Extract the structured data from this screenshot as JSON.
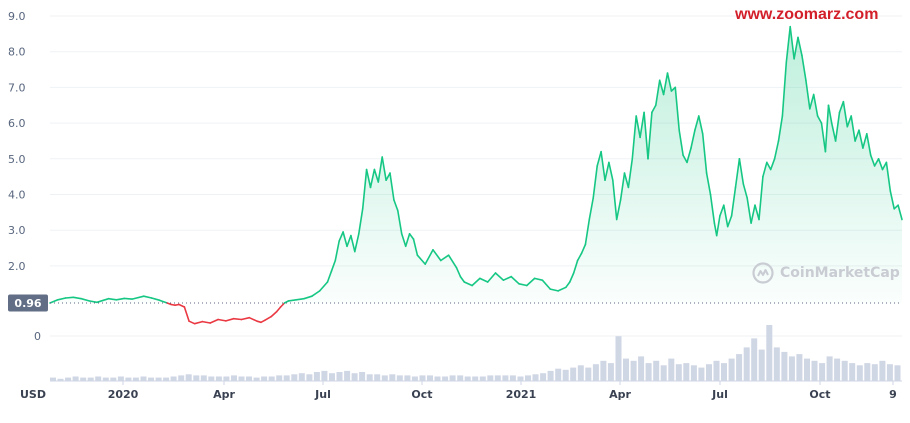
{
  "watermark": "www.zoomarz.com",
  "brand": {
    "name": "CoinMarketCap",
    "icon": "coinmarketcap-logo-icon"
  },
  "currency": "USD",
  "colors": {
    "up": "#16c784",
    "down": "#ea3943",
    "grid": "#eff2f5",
    "volume": "#cfd6e4",
    "price_label_bg": "#616e85"
  },
  "chart_data": {
    "type": "line",
    "ylim": [
      0,
      9
    ],
    "yticks": [
      "9.0",
      "8.0",
      "7.0",
      "6.0",
      "5.0",
      "4.0",
      "3.0",
      "2.0",
      "0"
    ],
    "xtick_labels": [
      "2020",
      "Apr",
      "Jul",
      "Oct",
      "2021",
      "Apr",
      "Jul",
      "Oct",
      "9"
    ],
    "reference_price": 0.96,
    "reference_label": "0.96",
    "series": [
      {
        "values": [
          [
            0.0,
            0.96
          ],
          [
            0.01,
            1.05
          ],
          [
            0.02,
            1.1
          ],
          [
            0.03,
            1.12
          ],
          [
            0.04,
            1.08
          ],
          [
            0.05,
            1.02
          ],
          [
            0.06,
            0.98
          ],
          [
            0.075,
            1.08
          ],
          [
            0.085,
            1.05
          ],
          [
            0.095,
            1.09
          ],
          [
            0.105,
            1.07
          ],
          [
            0.12,
            1.15
          ],
          [
            0.13,
            1.1
          ],
          [
            0.14,
            1.04
          ],
          [
            0.15,
            0.96
          ],
          [
            0.155,
            0.92
          ],
          [
            0.16,
            0.9
          ],
          [
            0.165,
            0.92
          ],
          [
            0.172,
            0.85
          ],
          [
            0.178,
            0.45
          ],
          [
            0.185,
            0.38
          ],
          [
            0.195,
            0.44
          ],
          [
            0.205,
            0.4
          ],
          [
            0.215,
            0.5
          ],
          [
            0.225,
            0.46
          ],
          [
            0.235,
            0.52
          ],
          [
            0.245,
            0.5
          ],
          [
            0.255,
            0.55
          ],
          [
            0.265,
            0.45
          ],
          [
            0.27,
            0.42
          ],
          [
            0.275,
            0.48
          ],
          [
            0.283,
            0.58
          ],
          [
            0.29,
            0.72
          ],
          [
            0.295,
            0.85
          ],
          [
            0.3,
            0.96
          ],
          [
            0.305,
            1.02
          ],
          [
            0.315,
            1.05
          ],
          [
            0.325,
            1.08
          ],
          [
            0.335,
            1.15
          ],
          [
            0.345,
            1.3
          ],
          [
            0.355,
            1.55
          ],
          [
            0.36,
            1.85
          ],
          [
            0.365,
            2.15
          ],
          [
            0.37,
            2.7
          ],
          [
            0.375,
            2.95
          ],
          [
            0.38,
            2.55
          ],
          [
            0.385,
            2.85
          ],
          [
            0.39,
            2.4
          ],
          [
            0.395,
            2.9
          ],
          [
            0.4,
            3.6
          ],
          [
            0.405,
            4.7
          ],
          [
            0.41,
            4.2
          ],
          [
            0.415,
            4.7
          ],
          [
            0.42,
            4.35
          ],
          [
            0.425,
            5.05
          ],
          [
            0.43,
            4.4
          ],
          [
            0.435,
            4.6
          ],
          [
            0.44,
            3.85
          ],
          [
            0.445,
            3.55
          ],
          [
            0.45,
            2.9
          ],
          [
            0.455,
            2.55
          ],
          [
            0.46,
            2.9
          ],
          [
            0.465,
            2.75
          ],
          [
            0.47,
            2.3
          ],
          [
            0.48,
            2.05
          ],
          [
            0.49,
            2.45
          ],
          [
            0.5,
            2.15
          ],
          [
            0.51,
            2.3
          ],
          [
            0.52,
            1.95
          ],
          [
            0.525,
            1.7
          ],
          [
            0.53,
            1.55
          ],
          [
            0.54,
            1.45
          ],
          [
            0.55,
            1.65
          ],
          [
            0.56,
            1.55
          ],
          [
            0.57,
            1.8
          ],
          [
            0.58,
            1.6
          ],
          [
            0.59,
            1.7
          ],
          [
            0.6,
            1.5
          ],
          [
            0.61,
            1.45
          ],
          [
            0.62,
            1.65
          ],
          [
            0.63,
            1.6
          ],
          [
            0.64,
            1.35
          ],
          [
            0.65,
            1.3
          ],
          [
            0.66,
            1.4
          ],
          [
            0.665,
            1.55
          ],
          [
            0.67,
            1.8
          ],
          [
            0.675,
            2.15
          ],
          [
            0.68,
            2.35
          ],
          [
            0.685,
            2.6
          ],
          [
            0.69,
            3.3
          ],
          [
            0.695,
            3.9
          ],
          [
            0.7,
            4.8
          ],
          [
            0.705,
            5.2
          ],
          [
            0.71,
            4.4
          ],
          [
            0.715,
            4.9
          ],
          [
            0.72,
            4.4
          ],
          [
            0.725,
            3.3
          ],
          [
            0.73,
            3.85
          ],
          [
            0.735,
            4.6
          ],
          [
            0.74,
            4.2
          ],
          [
            0.745,
            5.0
          ],
          [
            0.75,
            6.2
          ],
          [
            0.755,
            5.6
          ],
          [
            0.76,
            6.3
          ],
          [
            0.765,
            5.0
          ],
          [
            0.77,
            6.3
          ],
          [
            0.775,
            6.5
          ],
          [
            0.78,
            7.2
          ],
          [
            0.785,
            6.8
          ],
          [
            0.79,
            7.4
          ],
          [
            0.795,
            6.9
          ],
          [
            0.8,
            7.0
          ],
          [
            0.805,
            5.8
          ],
          [
            0.81,
            5.1
          ],
          [
            0.815,
            4.9
          ],
          [
            0.82,
            5.3
          ],
          [
            0.825,
            5.8
          ],
          [
            0.83,
            6.2
          ],
          [
            0.835,
            5.7
          ],
          [
            0.84,
            4.6
          ],
          [
            0.845,
            4.0
          ],
          [
            0.85,
            3.2
          ],
          [
            0.853,
            2.85
          ],
          [
            0.857,
            3.4
          ],
          [
            0.862,
            3.7
          ],
          [
            0.867,
            3.1
          ],
          [
            0.872,
            3.4
          ],
          [
            0.877,
            4.2
          ],
          [
            0.882,
            5.0
          ],
          [
            0.887,
            4.3
          ],
          [
            0.892,
            3.9
          ],
          [
            0.897,
            3.2
          ],
          [
            0.902,
            3.7
          ],
          [
            0.907,
            3.3
          ],
          [
            0.912,
            4.5
          ],
          [
            0.917,
            4.9
          ],
          [
            0.922,
            4.7
          ],
          [
            0.927,
            5.0
          ],
          [
            0.932,
            5.5
          ],
          [
            0.937,
            6.2
          ],
          [
            0.942,
            7.7
          ],
          [
            0.947,
            8.7
          ],
          [
            0.952,
            7.8
          ],
          [
            0.957,
            8.4
          ],
          [
            0.962,
            7.9
          ],
          [
            0.967,
            7.2
          ],
          [
            0.972,
            6.4
          ],
          [
            0.977,
            6.8
          ],
          [
            0.982,
            6.2
          ],
          [
            0.987,
            6.0
          ],
          [
            0.992,
            5.2
          ],
          [
            0.996,
            6.5
          ],
          [
            1.0,
            6.0
          ],
          [
            1.005,
            5.5
          ],
          [
            1.01,
            6.3
          ],
          [
            1.015,
            6.6
          ],
          [
            1.02,
            5.9
          ],
          [
            1.025,
            6.2
          ],
          [
            1.03,
            5.5
          ],
          [
            1.035,
            5.8
          ],
          [
            1.04,
            5.3
          ],
          [
            1.045,
            5.7
          ],
          [
            1.05,
            5.1
          ],
          [
            1.055,
            4.8
          ],
          [
            1.06,
            5.0
          ],
          [
            1.065,
            4.7
          ],
          [
            1.07,
            4.9
          ],
          [
            1.075,
            4.1
          ],
          [
            1.08,
            3.6
          ],
          [
            1.085,
            3.7
          ],
          [
            1.09,
            3.3
          ]
        ]
      }
    ],
    "volume": [
      3,
      2,
      3,
      4,
      3,
      3,
      4,
      3,
      3,
      4,
      3,
      3,
      4,
      3,
      3,
      3,
      4,
      5,
      6,
      5,
      5,
      4,
      4,
      4,
      5,
      4,
      4,
      3,
      4,
      4,
      5,
      5,
      6,
      7,
      6,
      8,
      9,
      7,
      8,
      9,
      7,
      8,
      6,
      6,
      5,
      6,
      5,
      5,
      4,
      5,
      5,
      4,
      4,
      5,
      5,
      4,
      4,
      4,
      5,
      5,
      5,
      5,
      4,
      5,
      6,
      7,
      9,
      11,
      10,
      12,
      14,
      12,
      15,
      18,
      16,
      40,
      20,
      18,
      22,
      16,
      18,
      14,
      20,
      15,
      16,
      14,
      12,
      15,
      18,
      16,
      20,
      24,
      30,
      38,
      28,
      50,
      30,
      26,
      22,
      24,
      20,
      18,
      16,
      22,
      20,
      18,
      16,
      14,
      16,
      15,
      18,
      15,
      14
    ]
  }
}
